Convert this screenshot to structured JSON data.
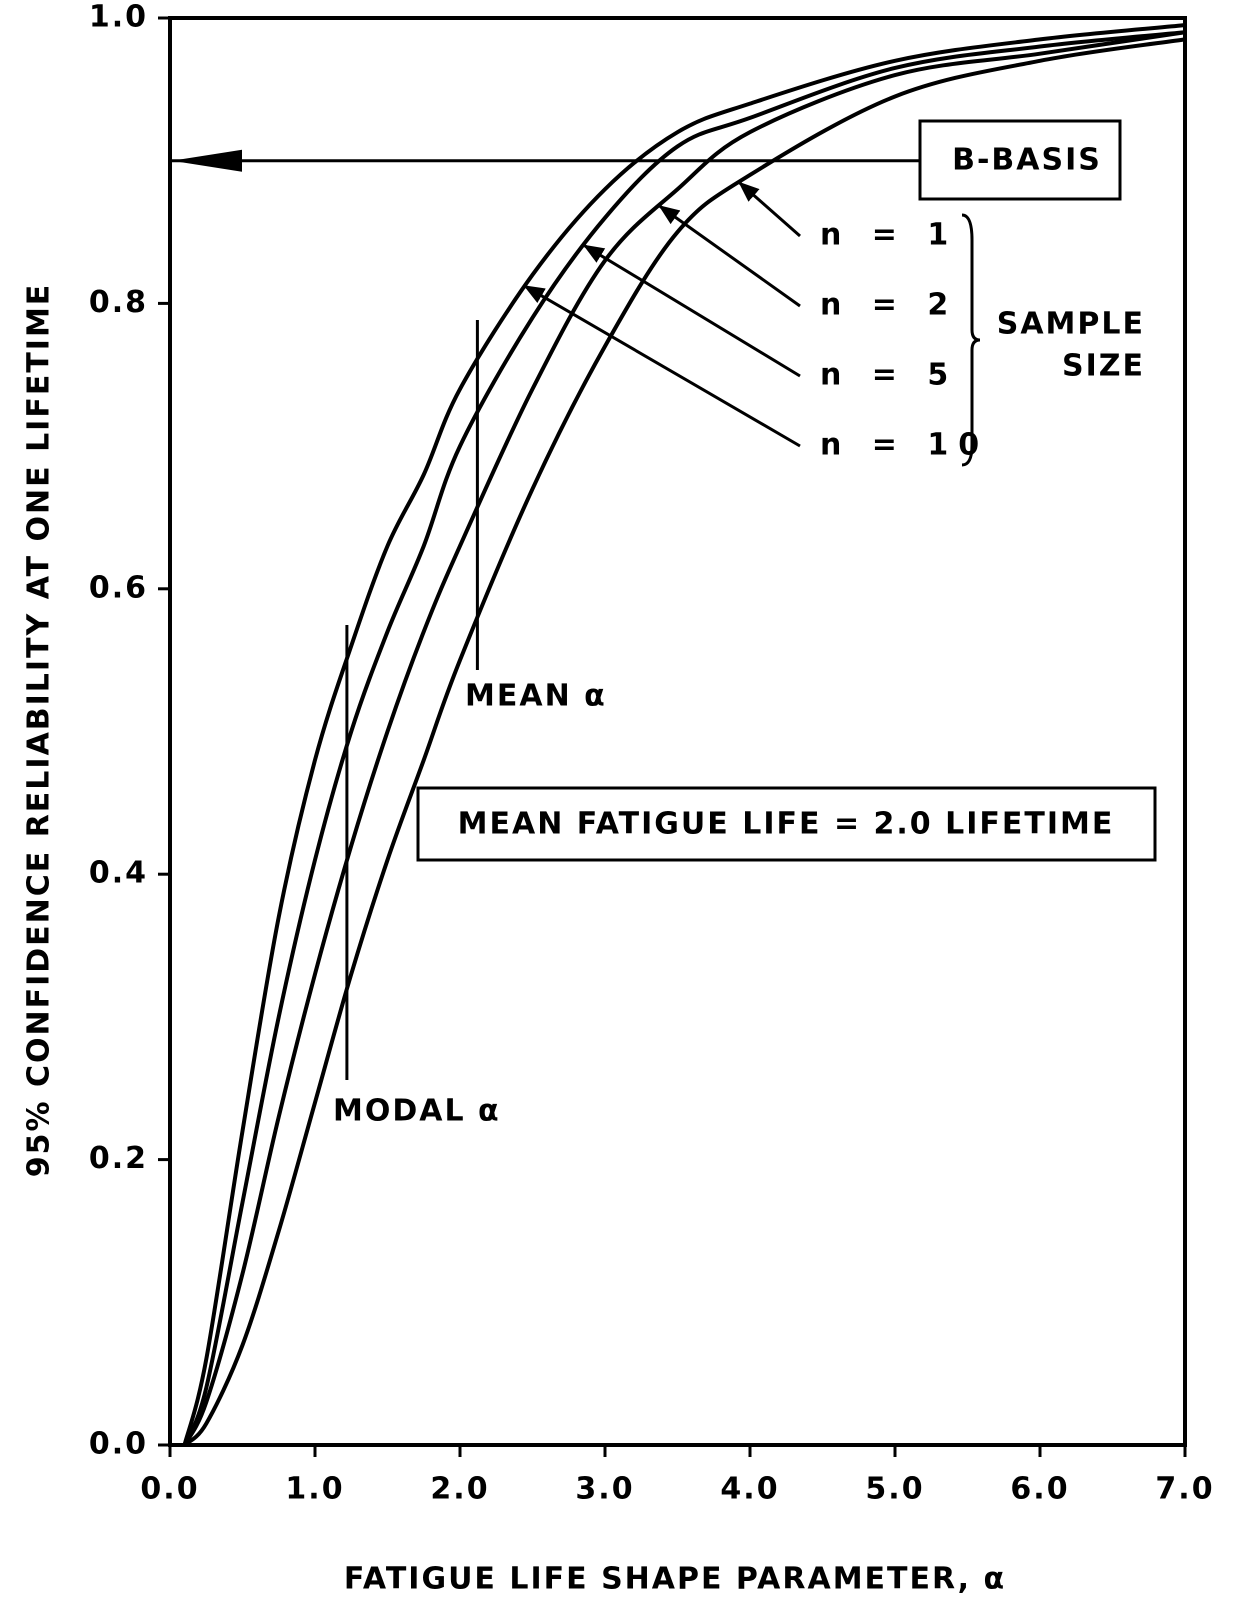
{
  "chart_data": {
    "type": "line",
    "xlabel": "FATIGUE LIFE SHAPE PARAMETER, α",
    "ylabel": "95% CONFIDENCE RELIABILITY AT ONE LIFETIME",
    "x": [
      0.1,
      0.25,
      0.5,
      0.75,
      1.0,
      1.25,
      1.5,
      1.75,
      2.0,
      2.5,
      3.0,
      3.5,
      4.0,
      5.0,
      6.0,
      7.0
    ],
    "series": [
      {
        "name": "n = 1",
        "color": "#000000",
        "values": [
          0.0,
          0.015,
          0.07,
          0.15,
          0.24,
          0.33,
          0.41,
          0.48,
          0.55,
          0.67,
          0.77,
          0.85,
          0.89,
          0.945,
          0.97,
          0.985
        ]
      },
      {
        "name": "n = 2",
        "color": "#000000",
        "values": [
          0.0,
          0.03,
          0.12,
          0.23,
          0.33,
          0.42,
          0.5,
          0.57,
          0.63,
          0.74,
          0.83,
          0.88,
          0.92,
          0.96,
          0.975,
          0.99
        ]
      },
      {
        "name": "n = 5",
        "color": "#000000",
        "values": [
          0.0,
          0.04,
          0.17,
          0.3,
          0.41,
          0.5,
          0.57,
          0.63,
          0.7,
          0.79,
          0.86,
          0.91,
          0.93,
          0.965,
          0.98,
          0.99
        ]
      },
      {
        "name": "n = 10",
        "color": "#000000",
        "values": [
          0.0,
          0.06,
          0.22,
          0.37,
          0.48,
          0.56,
          0.63,
          0.68,
          0.74,
          0.82,
          0.88,
          0.92,
          0.94,
          0.97,
          0.985,
          0.995
        ]
      }
    ],
    "legend_title": [
      "SAMPLE",
      "SIZE"
    ],
    "reference_line": {
      "label": "B-BASIS",
      "y": 0.9
    },
    "vertical_markers": [
      {
        "label": "MEAN α",
        "x": 2.12
      },
      {
        "label": "MODAL α",
        "x": 1.22
      }
    ],
    "note": "MEAN FATIGUE LIFE = 2.0 LIFETIME",
    "xlim": [
      0,
      7
    ],
    "ylim": [
      0,
      1
    ],
    "xticks": [
      {
        "value": 0,
        "label": "0.0"
      },
      {
        "value": 1,
        "label": "1.0"
      },
      {
        "value": 2,
        "label": "2.0"
      },
      {
        "value": 3,
        "label": "3.0"
      },
      {
        "value": 4,
        "label": "4.0"
      },
      {
        "value": 5,
        "label": "5.0"
      },
      {
        "value": 6,
        "label": "6.0"
      },
      {
        "value": 7,
        "label": "7.0"
      }
    ],
    "yticks": [
      {
        "value": 0,
        "label": "0.0"
      },
      0.2,
      0.4,
      0.6,
      0.8,
      {
        "value": 1,
        "label": "1.0"
      }
    ],
    "grid": false
  }
}
